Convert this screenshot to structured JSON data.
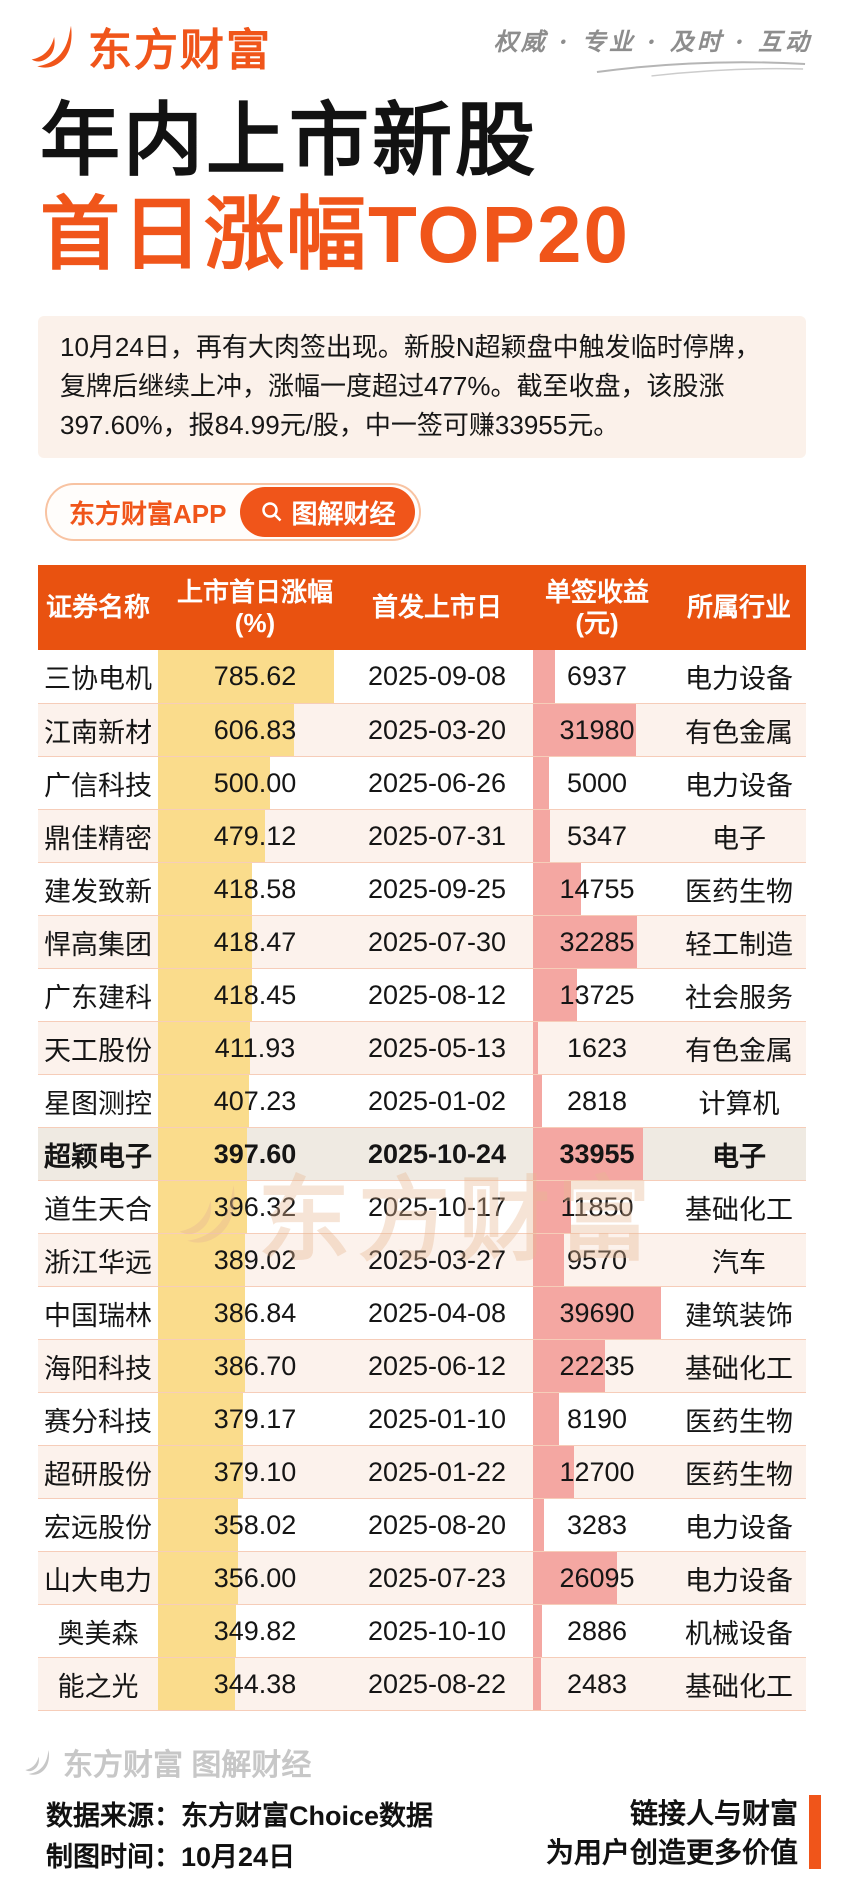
{
  "brand": {
    "logo_text": "东方财富",
    "tagline": "权威 · 专业 · 及时 · 互动"
  },
  "title": {
    "line1": "年内上市新股",
    "line2": "首日涨幅TOP20"
  },
  "intro": {
    "text": "10月24日，再有大肉签出现。新股N超颖盘中触发临时停牌，复牌后继续上冲，涨幅一度超过477%。截至收盘，该股涨397.60%，报84.99元/股，中一签可赚33955元。"
  },
  "badge": {
    "app_label": "东方财富APP",
    "button_label": "图解财经"
  },
  "watermarks": {
    "table_center": "东方财富",
    "footer": "东方财富 图解财经"
  },
  "footer": {
    "source": "数据来源：东方财富Choice数据",
    "date": "制图时间：10月24日",
    "slogan1": "链接人与财富",
    "slogan2": "为用户创造更多价值"
  },
  "colors": {
    "brand_orange": "#f0551a",
    "header_bg": "#e95210",
    "bar_yellow": "#fadc8c",
    "bar_pink": "#f4a7a2",
    "row_alt_bg": "#fcf2ec",
    "highlight_row_bg": "#efeae2"
  },
  "chart_data": {
    "type": "table",
    "title": "年内上市新股首日涨幅TOP20",
    "columns": [
      {
        "label": "证券名称"
      },
      {
        "label": "上市首日涨幅",
        "sub": "(%)",
        "bar": "yellow"
      },
      {
        "label": "首发上市日"
      },
      {
        "label": "单签收益",
        "sub": "(元)",
        "bar": "pink"
      },
      {
        "label": "所属行业"
      }
    ],
    "rows": [
      {
        "name": "三协电机",
        "pct": "785.62",
        "date": "2025-09-08",
        "income": "6937",
        "industry": "电力设备"
      },
      {
        "name": "江南新材",
        "pct": "606.83",
        "date": "2025-03-20",
        "income": "31980",
        "industry": "有色金属"
      },
      {
        "name": "广信科技",
        "pct": "500.00",
        "date": "2025-06-26",
        "income": "5000",
        "industry": "电力设备"
      },
      {
        "name": "鼎佳精密",
        "pct": "479.12",
        "date": "2025-07-31",
        "income": "5347",
        "industry": "电子"
      },
      {
        "name": "建发致新",
        "pct": "418.58",
        "date": "2025-09-25",
        "income": "14755",
        "industry": "医药生物"
      },
      {
        "name": "悍高集团",
        "pct": "418.47",
        "date": "2025-07-30",
        "income": "32285",
        "industry": "轻工制造"
      },
      {
        "name": "广东建科",
        "pct": "418.45",
        "date": "2025-08-12",
        "income": "13725",
        "industry": "社会服务"
      },
      {
        "name": "天工股份",
        "pct": "411.93",
        "date": "2025-05-13",
        "income": "1623",
        "industry": "有色金属"
      },
      {
        "name": "星图测控",
        "pct": "407.23",
        "date": "2025-01-02",
        "income": "2818",
        "industry": "计算机"
      },
      {
        "name": "超颖电子",
        "pct": "397.60",
        "date": "2025-10-24",
        "income": "33955",
        "industry": "电子",
        "highlight": true
      },
      {
        "name": "道生天合",
        "pct": "396.32",
        "date": "2025-10-17",
        "income": "11850",
        "industry": "基础化工"
      },
      {
        "name": "浙江华远",
        "pct": "389.02",
        "date": "2025-03-27",
        "income": "9570",
        "industry": "汽车"
      },
      {
        "name": "中国瑞林",
        "pct": "386.84",
        "date": "2025-04-08",
        "income": "39690",
        "industry": "建筑装饰"
      },
      {
        "name": "海阳科技",
        "pct": "386.70",
        "date": "2025-06-12",
        "income": "22235",
        "industry": "基础化工"
      },
      {
        "name": "赛分科技",
        "pct": "379.17",
        "date": "2025-01-10",
        "income": "8190",
        "industry": "医药生物"
      },
      {
        "name": "超研股份",
        "pct": "379.10",
        "date": "2025-01-22",
        "income": "12700",
        "industry": "医药生物"
      },
      {
        "name": "宏远股份",
        "pct": "358.02",
        "date": "2025-08-20",
        "income": "3283",
        "industry": "电力设备"
      },
      {
        "name": "山大电力",
        "pct": "356.00",
        "date": "2025-07-23",
        "income": "26095",
        "industry": "电力设备"
      },
      {
        "name": "奥美森",
        "pct": "349.82",
        "date": "2025-10-10",
        "income": "2886",
        "industry": "机械设备"
      },
      {
        "name": "能之光",
        "pct": "344.38",
        "date": "2025-08-22",
        "income": "2483",
        "industry": "基础化工"
      }
    ],
    "bar_columns_note": "上市首日涨幅(%) rendered as yellow bars, 单签收益(元) rendered as pink bars, widths proportional to values",
    "layout": {
      "highlighted_row": "超颖电子",
      "row_count": 20
    }
  }
}
